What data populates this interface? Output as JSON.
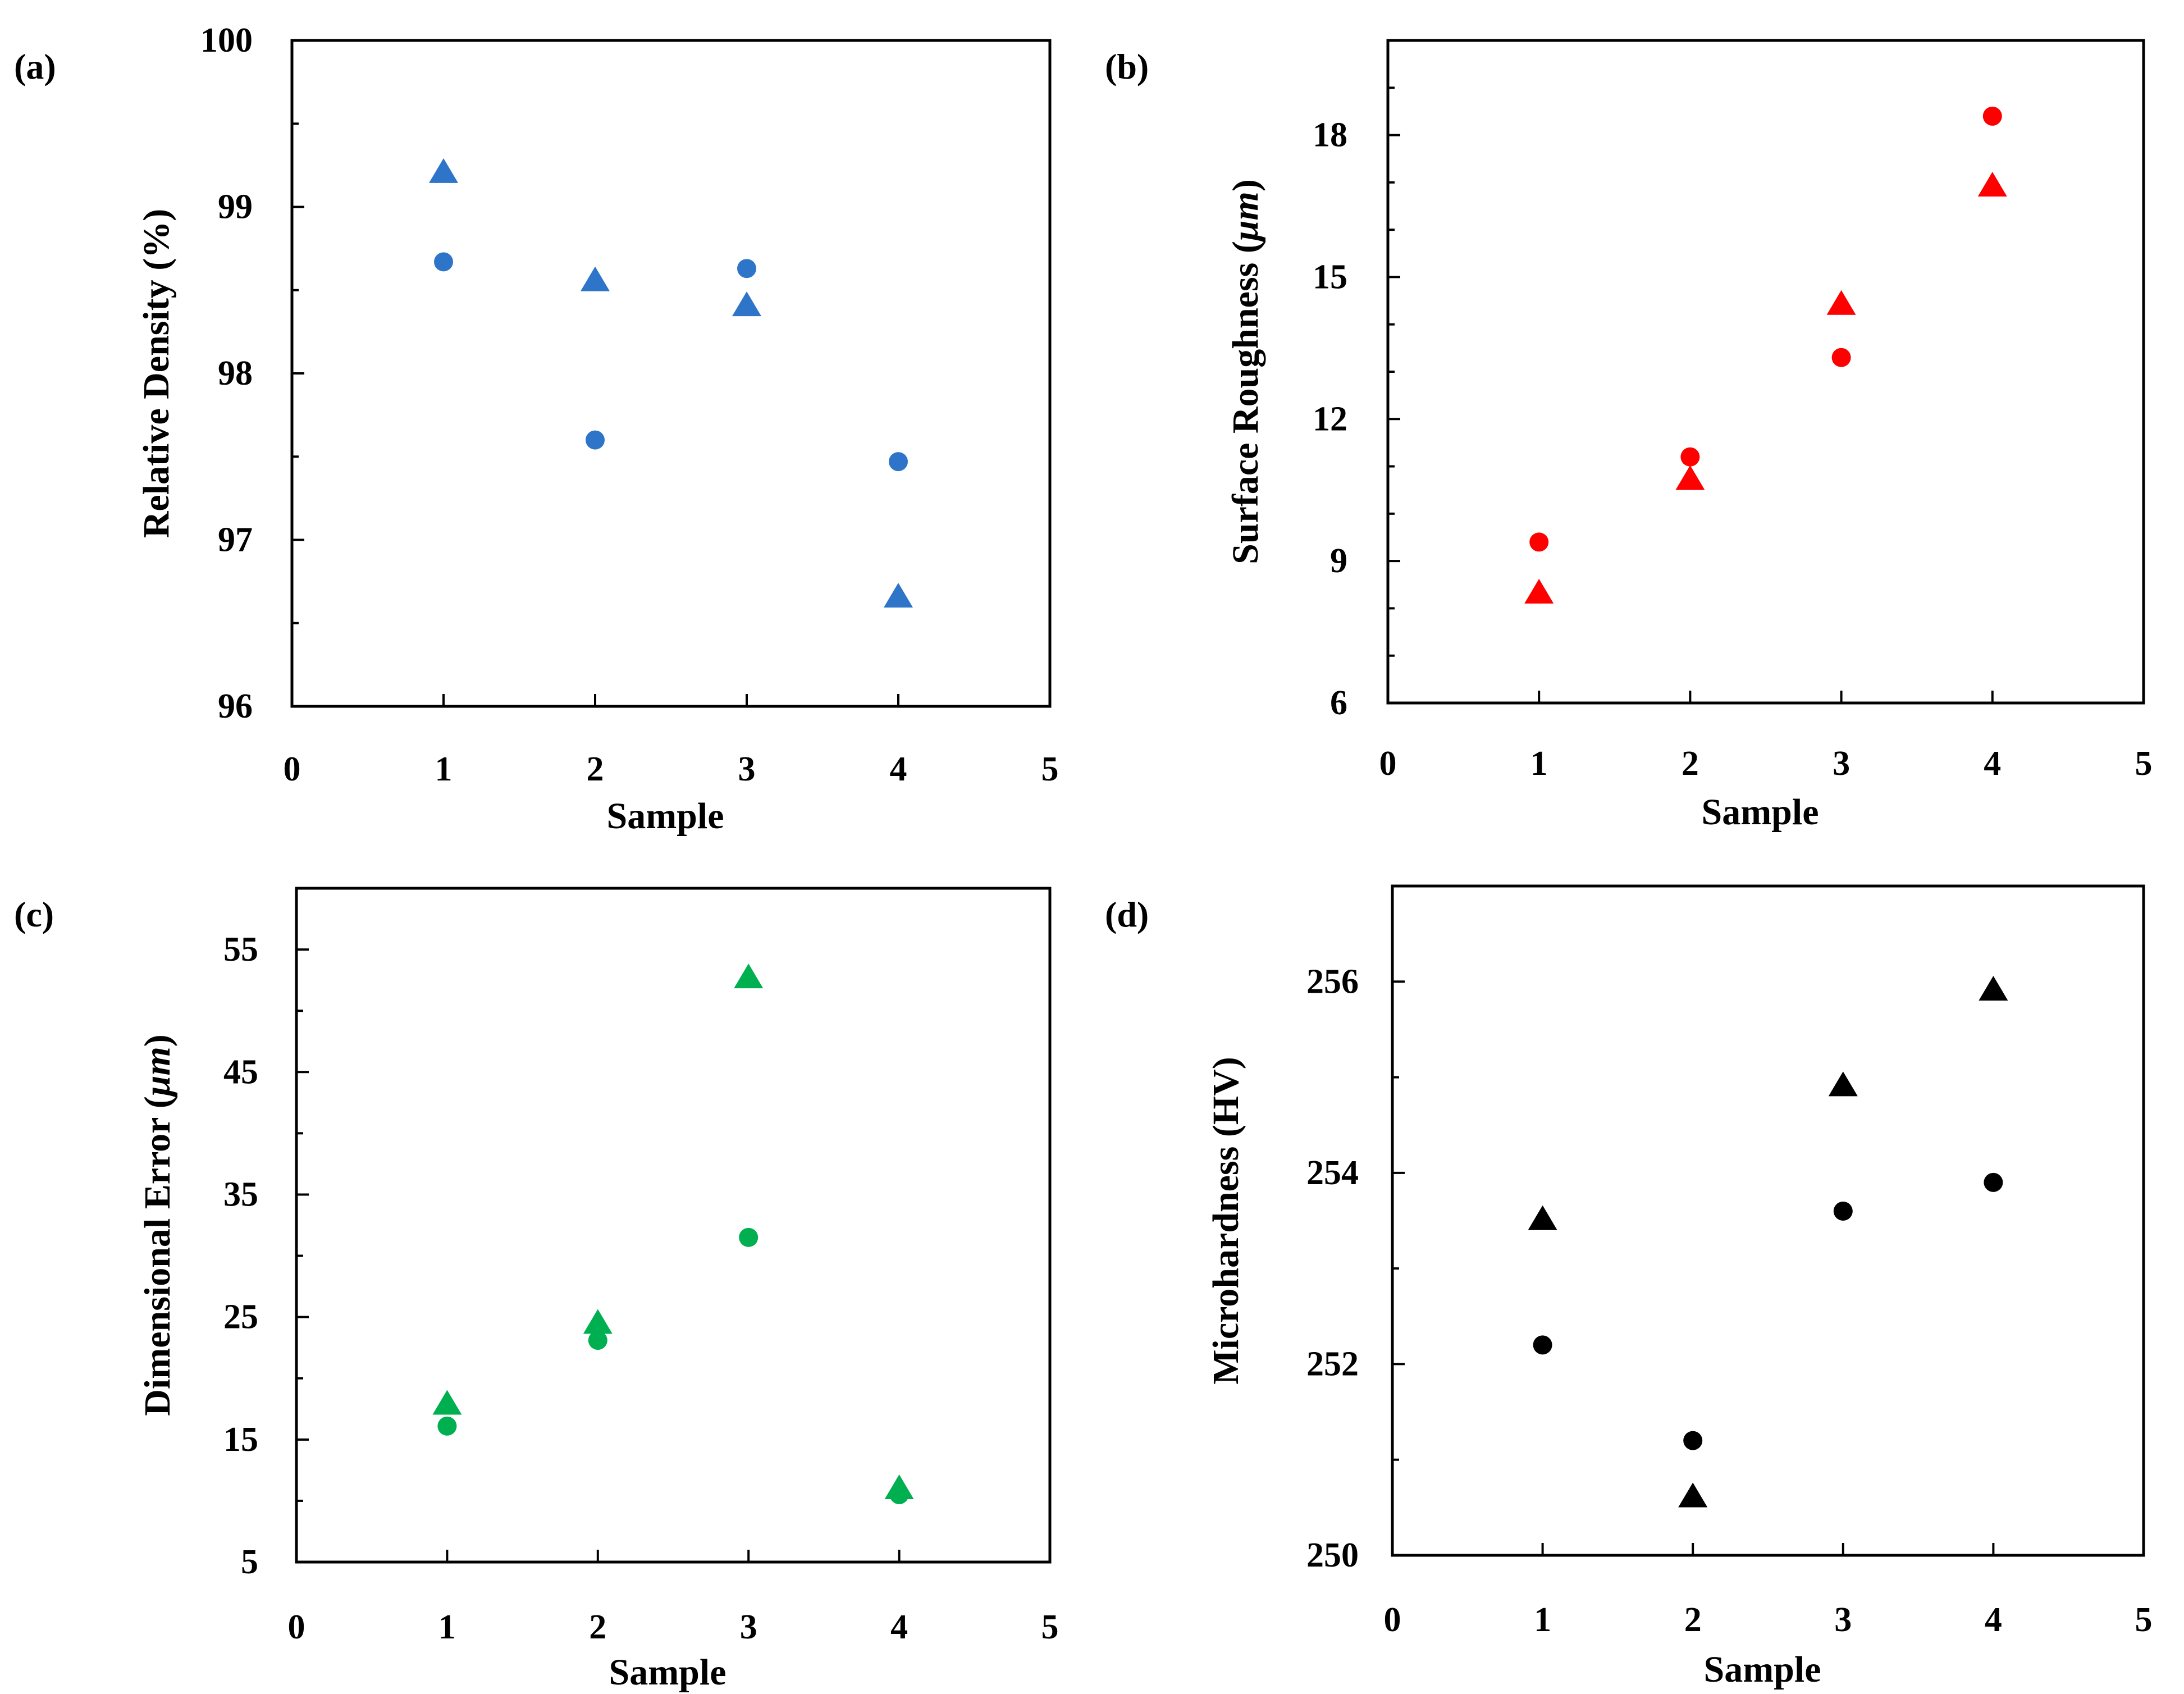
{
  "chart_data": [
    {
      "type": "scatter",
      "panel_label": "(a)",
      "title": "",
      "xlabel": "Sample",
      "ylabel": "Relative Density (%)",
      "ylabel_unit_italic": "",
      "ylabel_suffix": "",
      "xlim": [
        0,
        5
      ],
      "ylim": [
        96,
        100
      ],
      "xticks": [
        "0",
        "1",
        "2",
        "3",
        "4",
        "5"
      ],
      "yticks": [
        "96",
        "97",
        "98",
        "99",
        "100"
      ],
      "color": "#2e75c9",
      "series": [
        {
          "name": "circle",
          "marker": "circle",
          "x": [
            1,
            2,
            3,
            4
          ],
          "y": [
            98.67,
            97.6,
            98.63,
            97.47
          ]
        },
        {
          "name": "triangle",
          "marker": "triangle",
          "x": [
            1,
            2,
            3,
            4
          ],
          "y": [
            99.2,
            98.55,
            98.4,
            96.65
          ]
        }
      ]
    },
    {
      "type": "scatter",
      "panel_label": "(b)",
      "title": "",
      "xlabel": "Sample",
      "ylabel": "Surface Roughness (",
      "ylabel_unit_italic": "μm",
      "ylabel_suffix": ")",
      "xlim": [
        0,
        5
      ],
      "ylim": [
        6,
        20
      ],
      "xticks": [
        "0",
        "1",
        "2",
        "3",
        "4",
        "5"
      ],
      "yticks": [
        "6",
        "9",
        "12",
        "15",
        "18"
      ],
      "color": "#ff0000",
      "series": [
        {
          "name": "circle",
          "marker": "circle",
          "x": [
            1,
            2,
            3,
            4
          ],
          "y": [
            9.4,
            11.2,
            13.3,
            18.4
          ]
        },
        {
          "name": "triangle",
          "marker": "triangle",
          "x": [
            1,
            2,
            3,
            4
          ],
          "y": [
            8.3,
            10.7,
            14.4,
            16.9
          ]
        }
      ]
    },
    {
      "type": "scatter",
      "panel_label": "(c)",
      "title": "",
      "xlabel": "Sample",
      "ylabel": "Dimensional Error (",
      "ylabel_unit_italic": "μm",
      "ylabel_suffix": ")",
      "xlim": [
        0,
        5
      ],
      "ylim": [
        5,
        60
      ],
      "xticks": [
        "0",
        "1",
        "2",
        "3",
        "4",
        "5"
      ],
      "yticks": [
        "5",
        "15",
        "25",
        "35",
        "45",
        "55"
      ],
      "color": "#00b050",
      "series": [
        {
          "name": "circle",
          "marker": "circle",
          "x": [
            1,
            2,
            3,
            4
          ],
          "y": [
            16.1,
            23.1,
            31.5,
            10.5
          ]
        },
        {
          "name": "triangle",
          "marker": "triangle",
          "x": [
            1,
            2,
            3,
            4
          ],
          "y": [
            17.8,
            24.4,
            52.6,
            10.9
          ]
        }
      ]
    },
    {
      "type": "scatter",
      "panel_label": "(d)",
      "title": "",
      "xlabel": "Sample",
      "ylabel": "Microhardness  (HV)",
      "ylabel_unit_italic": "",
      "ylabel_suffix": "",
      "xlim": [
        0,
        5
      ],
      "ylim": [
        250,
        257
      ],
      "xticks": [
        "0",
        "1",
        "2",
        "3",
        "4",
        "5"
      ],
      "yticks": [
        "250",
        "252",
        "254",
        "256"
      ],
      "color": "#000000",
      "series": [
        {
          "name": "circle",
          "marker": "circle",
          "x": [
            1,
            2,
            3,
            4
          ],
          "y": [
            252.2,
            251.2,
            253.6,
            253.9
          ]
        },
        {
          "name": "triangle",
          "marker": "triangle",
          "x": [
            1,
            2,
            3,
            4
          ],
          "y": [
            253.5,
            250.6,
            254.9,
            255.9
          ]
        }
      ]
    }
  ]
}
